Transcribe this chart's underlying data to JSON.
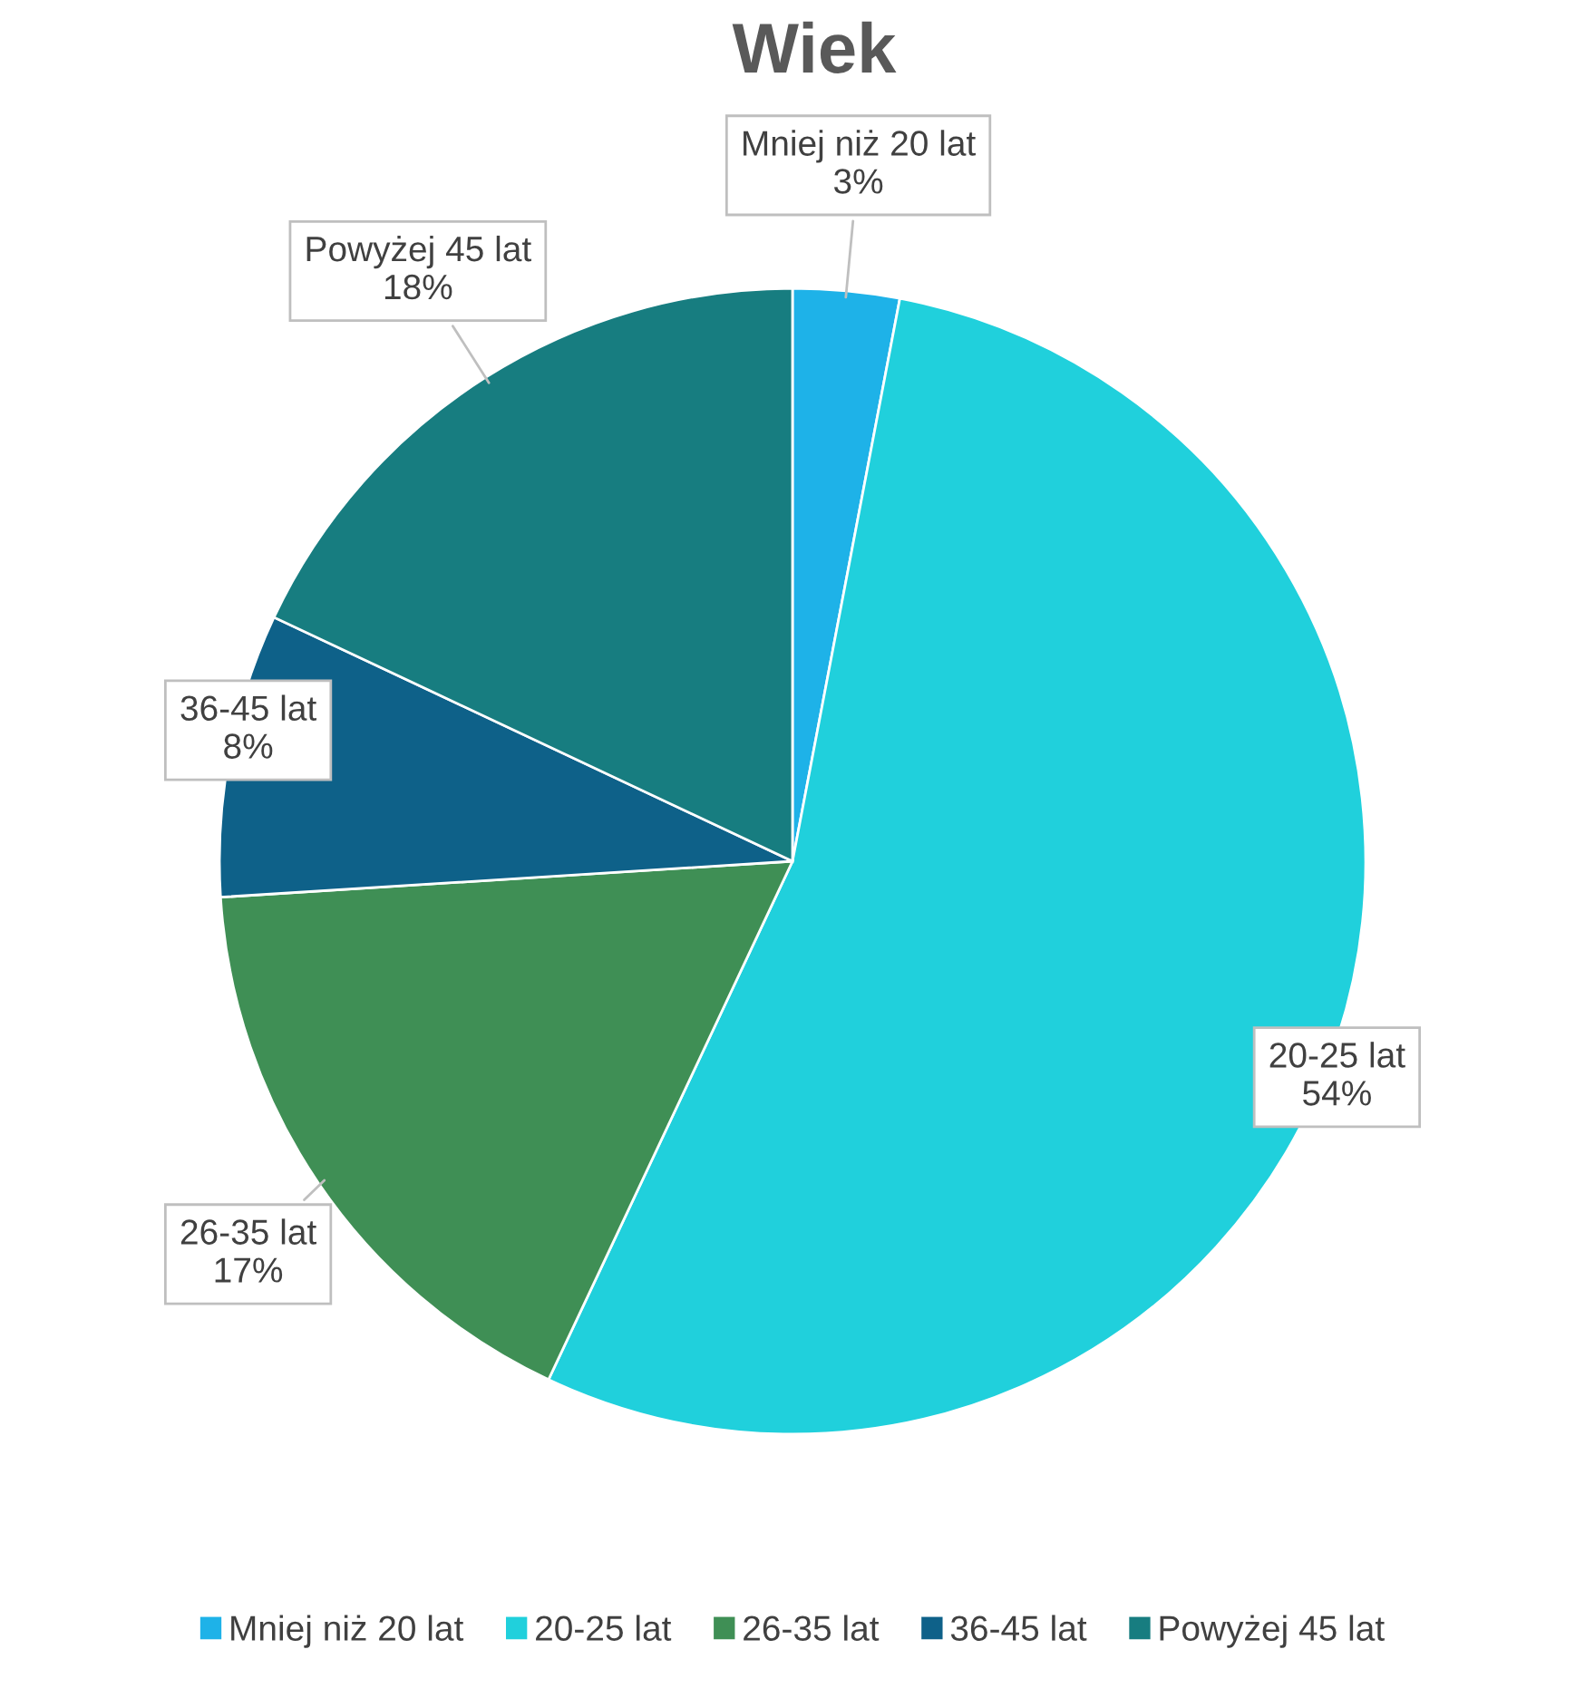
{
  "chart_data": {
    "type": "pie",
    "title": "Wiek",
    "categories": [
      "Mniej niż 20 lat",
      "20-25 lat",
      "26-35 lat",
      "36-45 lat",
      "Powyżej 45 lat"
    ],
    "values": [
      3,
      54,
      17,
      8,
      18
    ],
    "colors": [
      "#1eb2e8",
      "#20d0dc",
      "#3f8f55",
      "#0e6189",
      "#177d80"
    ],
    "value_labels": [
      "3%",
      "54%",
      "17%",
      "8%",
      "18%"
    ],
    "legend": "bottom"
  }
}
